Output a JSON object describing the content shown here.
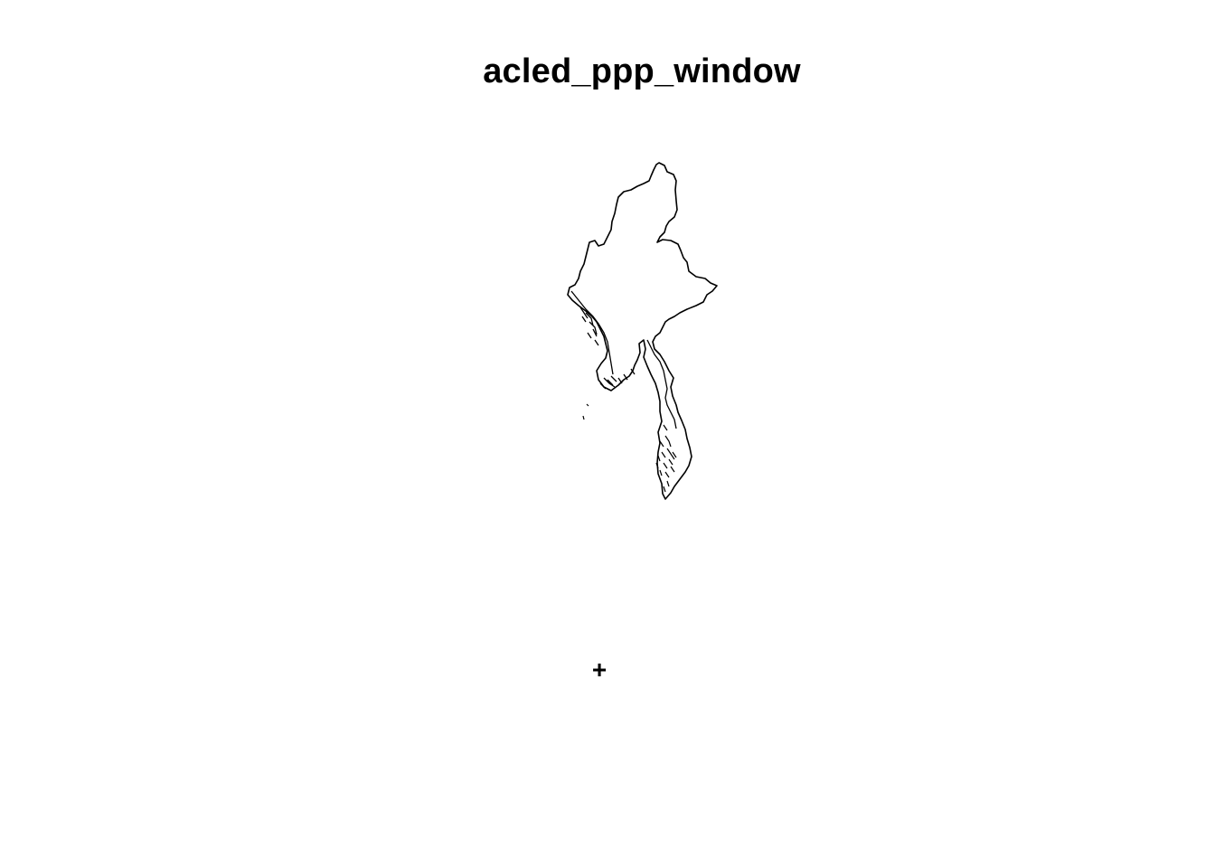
{
  "plot": {
    "title": "acled_ppp_window",
    "outline_color": "#000000",
    "background_color": "#ffffff"
  },
  "marker": {
    "glyph": "+"
  }
}
